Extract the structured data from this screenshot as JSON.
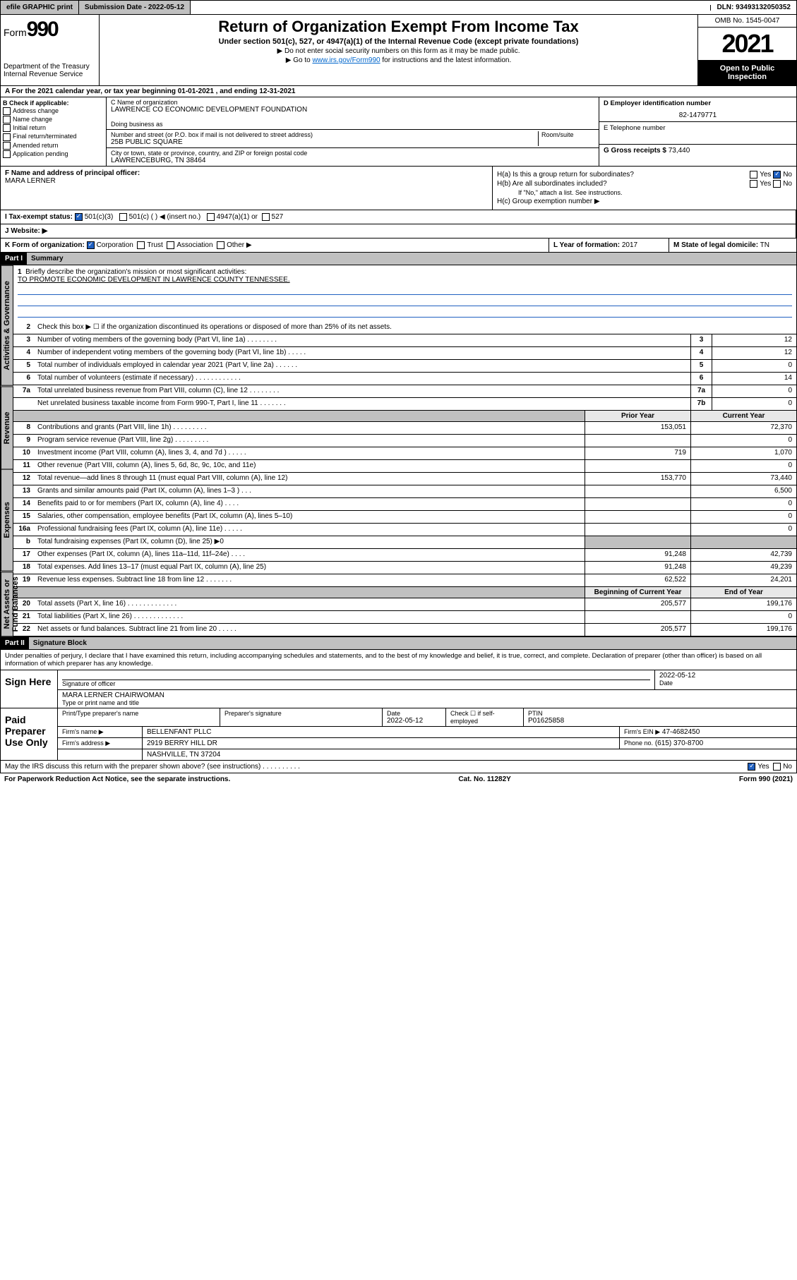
{
  "topbar": {
    "efile": "efile GRAPHIC print",
    "submission": "Submission Date - 2022-05-12",
    "dln": "DLN: 93493132050352"
  },
  "header": {
    "form_prefix": "Form",
    "form_number": "990",
    "dept": "Department of the Treasury",
    "irs": "Internal Revenue Service",
    "title": "Return of Organization Exempt From Income Tax",
    "subtitle": "Under section 501(c), 527, or 4947(a)(1) of the Internal Revenue Code (except private foundations)",
    "note1": "▶ Do not enter social security numbers on this form as it may be made public.",
    "note2_pre": "▶ Go to ",
    "note2_link": "www.irs.gov/Form990",
    "note2_post": " for instructions and the latest information.",
    "omb": "OMB No. 1545-0047",
    "year": "2021",
    "inspect": "Open to Public Inspection"
  },
  "row_a": "A For the 2021 calendar year, or tax year beginning 01-01-2021    , and ending 12-31-2021",
  "col_b": {
    "title": "B Check if applicable:",
    "items": [
      "Address change",
      "Name change",
      "Initial return",
      "Final return/terminated",
      "Amended return",
      "Application pending"
    ]
  },
  "col_c": {
    "name_lbl": "C Name of organization",
    "name": "LAWRENCE CO ECONOMIC DEVELOPMENT FOUNDATION",
    "dba_lbl": "Doing business as",
    "dba": "",
    "addr_lbl": "Number and street (or P.O. box if mail is not delivered to street address)",
    "room_lbl": "Room/suite",
    "addr": "25B PUBLIC SQUARE",
    "city_lbl": "City or town, state or province, country, and ZIP or foreign postal code",
    "city": "LAWRENCEBURG, TN  38464"
  },
  "col_de": {
    "d_lbl": "D Employer identification number",
    "d_val": "82-1479771",
    "e_lbl": "E Telephone number",
    "e_val": "",
    "g_lbl": "G Gross receipts $",
    "g_val": "73,440"
  },
  "f": {
    "lbl": "F Name and address of principal officer:",
    "val": "MARA LERNER"
  },
  "h": {
    "a": "H(a)  Is this a group return for subordinates?",
    "a_yes": "Yes",
    "a_no": "No",
    "b": "H(b)  Are all subordinates included?",
    "b_yes": "Yes",
    "b_no": "No",
    "b_note": "If \"No,\" attach a list. See instructions.",
    "c": "H(c)  Group exemption number ▶"
  },
  "i": {
    "lbl": "I   Tax-exempt status:",
    "opts": [
      "501(c)(3)",
      "501(c) (  ) ◀ (insert no.)",
      "4947(a)(1) or",
      "527"
    ]
  },
  "j": {
    "lbl": "J   Website: ▶",
    "val": ""
  },
  "k": {
    "lbl": "K Form of organization:",
    "opts": [
      "Corporation",
      "Trust",
      "Association",
      "Other ▶"
    ]
  },
  "l": {
    "lbl": "L Year of formation:",
    "val": "2017"
  },
  "m": {
    "lbl": "M State of legal domicile:",
    "val": "TN"
  },
  "part1": {
    "hdr": "Part I",
    "title": "Summary",
    "vtab_ag": "Activities & Governance",
    "vtab_rev": "Revenue",
    "vtab_exp": "Expenses",
    "vtab_net": "Net Assets or Fund Balances",
    "line1_lbl": "Briefly describe the organization's mission or most significant activities:",
    "line1_val": "TO PROMOTE ECONOMIC DEVELOPMENT IN LAWRENCE COUNTY TENNESSEE.",
    "line2": "Check this box ▶ ☐  if the organization discontinued its operations or disposed of more than 25% of its net assets.",
    "lines_ag": [
      {
        "n": "3",
        "lbl": "Number of voting members of the governing body (Part VI, line 1a)  .   .   .   .   .   .   .   .",
        "box": "3",
        "val": "12"
      },
      {
        "n": "4",
        "lbl": "Number of independent voting members of the governing body (Part VI, line 1b)  .   .   .   .   .",
        "box": "4",
        "val": "12"
      },
      {
        "n": "5",
        "lbl": "Total number of individuals employed in calendar year 2021 (Part V, line 2a)  .   .   .   .   .   .",
        "box": "5",
        "val": "0"
      },
      {
        "n": "6",
        "lbl": "Total number of volunteers (estimate if necessary)  .   .   .   .   .   .   .   .   .   .   .   .",
        "box": "6",
        "val": "14"
      },
      {
        "n": "7a",
        "lbl": "Total unrelated business revenue from Part VIII, column (C), line 12  .   .   .   .   .   .   .   .",
        "box": "7a",
        "val": "0"
      },
      {
        "n": "",
        "lbl": "Net unrelated business taxable income from Form 990-T, Part I, line 11  .   .   .   .   .   .   .",
        "box": "7b",
        "val": "0"
      }
    ],
    "prior_hdr": "Prior Year",
    "current_hdr": "Current Year",
    "lines_rev": [
      {
        "n": "8",
        "lbl": "Contributions and grants (Part VIII, line 1h)  .   .   .   .   .   .   .   .   .",
        "p": "153,051",
        "c": "72,370"
      },
      {
        "n": "9",
        "lbl": "Program service revenue (Part VIII, line 2g)  .   .   .   .   .   .   .   .   .",
        "p": "",
        "c": "0"
      },
      {
        "n": "10",
        "lbl": "Investment income (Part VIII, column (A), lines 3, 4, and 7d )  .   .   .   .   .",
        "p": "719",
        "c": "1,070"
      },
      {
        "n": "11",
        "lbl": "Other revenue (Part VIII, column (A), lines 5, 6d, 8c, 9c, 10c, and 11e)",
        "p": "",
        "c": "0"
      },
      {
        "n": "12",
        "lbl": "Total revenue—add lines 8 through 11 (must equal Part VIII, column (A), line 12)",
        "p": "153,770",
        "c": "73,440"
      }
    ],
    "lines_exp": [
      {
        "n": "13",
        "lbl": "Grants and similar amounts paid (Part IX, column (A), lines 1–3 )  .   .   .",
        "p": "",
        "c": "6,500"
      },
      {
        "n": "14",
        "lbl": "Benefits paid to or for members (Part IX, column (A), line 4)  .   .   .   .",
        "p": "",
        "c": "0"
      },
      {
        "n": "15",
        "lbl": "Salaries, other compensation, employee benefits (Part IX, column (A), lines 5–10)",
        "p": "",
        "c": "0"
      },
      {
        "n": "16a",
        "lbl": "Professional fundraising fees (Part IX, column (A), line 11e)  .   .   .   .   .",
        "p": "",
        "c": "0"
      },
      {
        "n": "b",
        "lbl": "Total fundraising expenses (Part IX, column (D), line 25) ▶0",
        "p": "",
        "c": "",
        "shaded": true
      },
      {
        "n": "17",
        "lbl": "Other expenses (Part IX, column (A), lines 11a–11d, 11f–24e)  .   .   .   .",
        "p": "91,248",
        "c": "42,739"
      },
      {
        "n": "18",
        "lbl": "Total expenses. Add lines 13–17 (must equal Part IX, column (A), line 25)",
        "p": "91,248",
        "c": "49,239"
      },
      {
        "n": "19",
        "lbl": "Revenue less expenses. Subtract line 18 from line 12  .   .   .   .   .   .   .",
        "p": "62,522",
        "c": "24,201"
      }
    ],
    "boy_hdr": "Beginning of Current Year",
    "eoy_hdr": "End of Year",
    "lines_net": [
      {
        "n": "20",
        "lbl": "Total assets (Part X, line 16)  .   .   .   .   .   .   .   .   .   .   .   .   .",
        "p": "205,577",
        "c": "199,176"
      },
      {
        "n": "21",
        "lbl": "Total liabilities (Part X, line 26)  .   .   .   .   .   .   .   .   .   .   .   .   .",
        "p": "",
        "c": "0"
      },
      {
        "n": "22",
        "lbl": "Net assets or fund balances. Subtract line 21 from line 20  .   .   .   .   .",
        "p": "205,577",
        "c": "199,176"
      }
    ]
  },
  "part2": {
    "hdr": "Part II",
    "title": "Signature Block",
    "decl": "Under penalties of perjury, I declare that I have examined this return, including accompanying schedules and statements, and to the best of my knowledge and belief, it is true, correct, and complete. Declaration of preparer (other than officer) is based on all information of which preparer has any knowledge.",
    "sign_here": "Sign Here",
    "sig_officer": "Signature of officer",
    "sig_date_lbl": "Date",
    "sig_date": "2022-05-12",
    "officer_name": "MARA LERNER  CHAIRWOMAN",
    "officer_type": "Type or print name and title",
    "paid": "Paid Preparer Use Only",
    "prep_name_lbl": "Print/Type preparer's name",
    "prep_sig_lbl": "Preparer's signature",
    "prep_date_lbl": "Date",
    "prep_date": "2022-05-12",
    "self_emp": "Check ☐ if self-employed",
    "ptin_lbl": "PTIN",
    "ptin": "P01625858",
    "firm_name_lbl": "Firm's name    ▶",
    "firm_name": "BELLENFANT PLLC",
    "firm_ein_lbl": "Firm's EIN ▶",
    "firm_ein": "47-4682450",
    "firm_addr_lbl": "Firm's address ▶",
    "firm_addr1": "2919 BERRY HILL DR",
    "firm_addr2": "NASHVILLE, TN  37204",
    "phone_lbl": "Phone no.",
    "phone": "(615) 370-8700",
    "discuss": "May the IRS discuss this return with the preparer shown above? (see instructions)  .   .   .   .   .   .   .   .   .   .",
    "discuss_yes": "Yes",
    "discuss_no": "No"
  },
  "footer": {
    "left": "For Paperwork Reduction Act Notice, see the separate instructions.",
    "mid": "Cat. No. 11282Y",
    "right": "Form 990 (2021)"
  },
  "colors": {
    "link": "#0066cc",
    "gray_bg": "#c0c0c0",
    "black": "#000000",
    "white": "#ffffff",
    "check_blue": "#2060c0"
  }
}
